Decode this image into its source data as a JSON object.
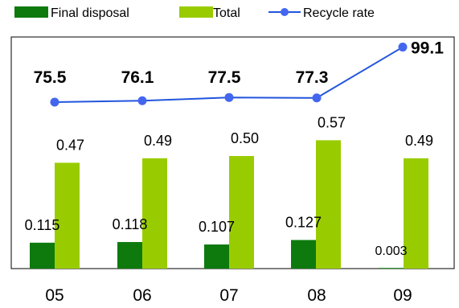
{
  "chart_data": {
    "type": "bar",
    "categories": [
      "05",
      "06",
      "07",
      "08",
      "09"
    ],
    "series": [
      {
        "name": "Final disposal",
        "kind": "bar",
        "color": "#0e7a0e",
        "values": [
          0.115,
          0.118,
          0.107,
          0.127,
          0.003
        ],
        "labels": [
          "0.115",
          "0.118",
          "0.107",
          "0.127",
          "0.003"
        ]
      },
      {
        "name": "Total",
        "kind": "bar",
        "color": "#99cc00",
        "values": [
          0.47,
          0.49,
          0.5,
          0.57,
          0.49
        ],
        "labels": [
          "0.47",
          "0.49",
          "0.50",
          "0.57",
          "0.49"
        ]
      },
      {
        "name": "Recycle rate",
        "kind": "line",
        "color": "#2255dd",
        "marker_color": "#4466ee",
        "values": [
          75.5,
          76.1,
          77.5,
          77.3,
          99.1
        ],
        "labels": [
          "75.5",
          "76.1",
          "77.5",
          "77.3",
          "99.1"
        ]
      }
    ],
    "legend_position": "top",
    "grid": false
  }
}
